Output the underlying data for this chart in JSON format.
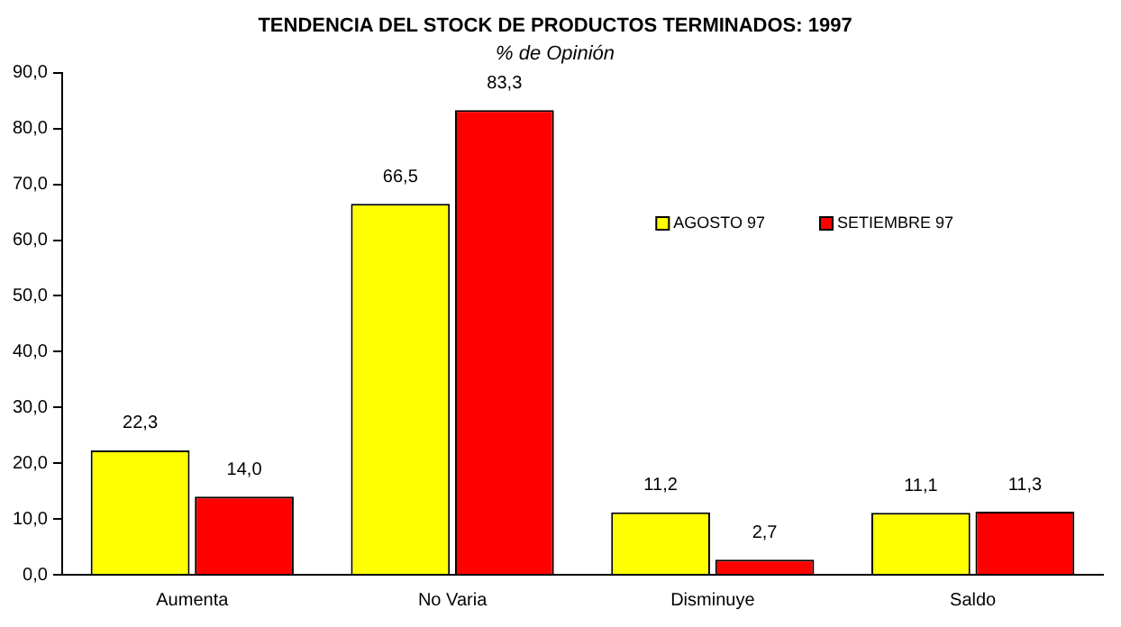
{
  "chart_data": {
    "type": "bar",
    "title": "TENDENCIA DEL STOCK DE PRODUCTOS TERMINADOS: 1997",
    "subtitle": "% de Opinión",
    "categories": [
      "Aumenta",
      "No Varia",
      "Disminuye",
      "Saldo"
    ],
    "series": [
      {
        "name": "AGOSTO 97",
        "color": "#ffff00",
        "values": [
          22.3,
          66.5,
          11.2,
          11.1
        ],
        "value_labels": [
          "22,3",
          "66,5",
          "11,2",
          "11,1"
        ]
      },
      {
        "name": "SETIEMBRE 97",
        "color": "#ff0000",
        "values": [
          14.0,
          83.3,
          2.7,
          11.3
        ],
        "value_labels": [
          "14,0",
          "83,3",
          "2,7",
          "11,3"
        ]
      }
    ],
    "ylim": [
      0,
      90
    ],
    "yticks": [
      {
        "value": 0,
        "label": "0,0"
      },
      {
        "value": 10,
        "label": "10,0"
      },
      {
        "value": 20,
        "label": "20,0"
      },
      {
        "value": 30,
        "label": "30,0"
      },
      {
        "value": 40,
        "label": "40,0"
      },
      {
        "value": 50,
        "label": "50,0"
      },
      {
        "value": 60,
        "label": "60,0"
      },
      {
        "value": 70,
        "label": "70,0"
      },
      {
        "value": 80,
        "label": "80,0"
      },
      {
        "value": 90,
        "label": "90,0"
      }
    ],
    "grid": false,
    "legend": "right"
  }
}
